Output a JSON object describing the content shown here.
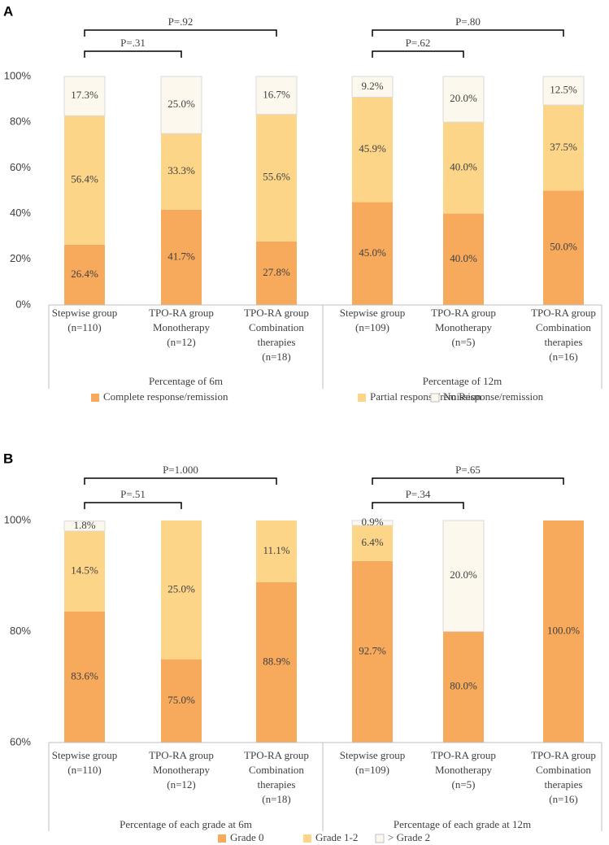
{
  "chart_data": [
    {
      "type": "bar",
      "panel": "A",
      "categories": [
        [
          "Stepwise group",
          "(n=110)"
        ],
        [
          "TPO-RA group",
          "Monotherapy",
          "(n=12)"
        ],
        [
          "TPO-RA group",
          "Combination",
          "therapies",
          "(n=18)"
        ],
        [
          "Stepwise group",
          "(n=109)"
        ],
        [
          "TPO-RA group",
          "Monotherapy",
          "(n=5)"
        ],
        [
          "TPO-RA group",
          "Combination",
          "therapies",
          "(n=16)"
        ]
      ],
      "groups": [
        "Percentage of 6m",
        "Percentage of 12m"
      ],
      "p_values": [
        "P=.31",
        "P=.92",
        "P=.62",
        "P=.80"
      ],
      "series": [
        {
          "name": "Complete response/remission",
          "color": "#f7a95c",
          "values": [
            26.4,
            41.7,
            27.8,
            45.0,
            40.0,
            50.0
          ],
          "value_labels": [
            "26.4%",
            "41.7%",
            "27.8%",
            "45.0%",
            "40.0%",
            "50.0%"
          ]
        },
        {
          "name": "Partial response/remission",
          "color": "#fdd588",
          "values": [
            56.4,
            33.3,
            55.6,
            45.9,
            40.0,
            37.5
          ],
          "value_labels": [
            "56.4%",
            "33.3%",
            "55.6%",
            "45.9%",
            "40.0%",
            "37.5%"
          ]
        },
        {
          "name": "No Response/remission",
          "color": "#fdf8ee",
          "values": [
            17.3,
            25.0,
            16.7,
            9.2,
            20.0,
            12.5
          ],
          "value_labels": [
            "17.3%",
            "25.0%",
            "16.7%",
            "9.2%",
            "20.0%",
            "12.5%"
          ]
        }
      ],
      "ylim": [
        0,
        100
      ],
      "yticks": [
        {
          "value": 0,
          "label": "0%"
        },
        {
          "value": 20,
          "label": "20%"
        },
        {
          "value": 40,
          "label": "40%"
        },
        {
          "value": 60,
          "label": "60%"
        },
        {
          "value": 80,
          "label": "80%"
        },
        {
          "value": 100,
          "label": "100%"
        }
      ]
    },
    {
      "type": "bar",
      "panel": "B",
      "categories": [
        [
          "Stepwise group",
          "(n=110)"
        ],
        [
          "TPO-RA group",
          "Monotherapy",
          "(n=12)"
        ],
        [
          "TPO-RA group",
          "Combination",
          "therapies",
          "(n=18)"
        ],
        [
          "Stepwise group",
          "(n=109)"
        ],
        [
          "TPO-RA group",
          "Monotherapy",
          "(n=5)"
        ],
        [
          "TPO-RA group",
          "Combination",
          "therapies",
          "(n=16)"
        ]
      ],
      "groups": [
        "Percentage of each grade at 6m",
        "Percentage of each grade at 12m"
      ],
      "p_values": [
        "P=.51",
        "P=1.000",
        "P=.34",
        "P=.65"
      ],
      "series": [
        {
          "name": "Grade 0",
          "color": "#f7a95c",
          "values": [
            83.6,
            75.0,
            88.9,
            92.7,
            80.0,
            100.0
          ],
          "value_labels": [
            "83.6%",
            "75.0%",
            "88.9%",
            "92.7%",
            "80.0%",
            "100.0%"
          ]
        },
        {
          "name": "Grade 1-2",
          "color": "#fdd588",
          "values": [
            14.5,
            25.0,
            11.1,
            6.4,
            null,
            null
          ],
          "value_labels": [
            "14.5%",
            "25.0%",
            "11.1%",
            "6.4%",
            null,
            null
          ]
        },
        {
          "name": "> Grade 2",
          "color": "#fdf8ee",
          "values": [
            1.8,
            null,
            null,
            0.9,
            20.0,
            null
          ],
          "value_labels": [
            "1.8%",
            null,
            null,
            "0.9%",
            "20.0%",
            null
          ]
        }
      ],
      "ylim": [
        60,
        100
      ],
      "yticks": [
        {
          "value": 60,
          "label": "60%"
        },
        {
          "value": 80,
          "label": "80%"
        },
        {
          "value": 100,
          "label": "100%"
        }
      ]
    }
  ]
}
